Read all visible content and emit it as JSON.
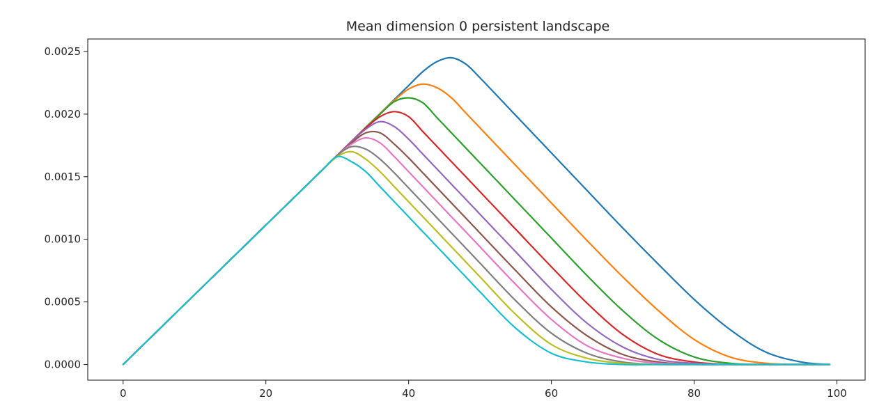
{
  "chart_data": {
    "type": "line",
    "title": "Mean dimension 0 persistent landscape",
    "xlabel": "",
    "ylabel": "",
    "xlim": [
      -4.95,
      103.95
    ],
    "ylim": [
      -0.000125,
      0.0026
    ],
    "xticks": [
      0,
      20,
      40,
      60,
      80,
      100
    ],
    "yticks": [
      0.0,
      0.0005,
      0.001,
      0.0015,
      0.002,
      0.0025
    ],
    "xtick_labels": [
      "0",
      "20",
      "40",
      "60",
      "80",
      "100"
    ],
    "ytick_labels": [
      "0.0000",
      "0.0005",
      "0.0010",
      "0.0015",
      "0.0020",
      "0.0025"
    ],
    "grid": false,
    "legend": "none",
    "x": [
      0,
      10,
      20,
      25,
      28,
      30,
      32,
      34,
      36,
      38,
      40,
      42,
      44,
      46,
      48,
      50,
      55,
      60,
      65,
      70,
      75,
      80,
      85,
      90,
      95,
      99
    ],
    "series": [
      {
        "color": "#1f77b4",
        "values": [
          0.0,
          0.000557,
          0.001114,
          0.001392,
          0.001559,
          0.001671,
          0.001782,
          0.001894,
          0.002005,
          0.002117,
          0.002228,
          0.00234,
          0.00242,
          0.00245,
          0.0024,
          0.00229,
          0.00199,
          0.00169,
          0.00139,
          0.00109,
          0.0008,
          0.00052,
          0.00028,
          0.0001,
          2e-05,
          0.0
        ]
      },
      {
        "color": "#ff7f0e",
        "values": [
          0.0,
          0.000557,
          0.001114,
          0.001392,
          0.001559,
          0.001671,
          0.001782,
          0.001894,
          0.002005,
          0.00211,
          0.0022,
          0.00224,
          0.00221,
          0.00213,
          0.00201,
          0.00189,
          0.00159,
          0.00129,
          0.00099,
          0.0007,
          0.00043,
          0.0002,
          6e-05,
          1e-05,
          0.0,
          0.0
        ]
      },
      {
        "color": "#2ca02c",
        "values": [
          0.0,
          0.000557,
          0.001114,
          0.001392,
          0.001559,
          0.001671,
          0.001782,
          0.001894,
          0.002,
          0.0021,
          0.00213,
          0.00209,
          0.00197,
          0.00185,
          0.00173,
          0.00161,
          0.00131,
          0.00101,
          0.00071,
          0.00043,
          0.0002,
          6e-05,
          1e-05,
          0.0,
          0.0,
          0.0
        ]
      },
      {
        "color": "#d62728",
        "values": [
          0.0,
          0.000557,
          0.001114,
          0.001392,
          0.001559,
          0.001671,
          0.001782,
          0.00189,
          0.00198,
          0.00202,
          0.00198,
          0.00186,
          0.00174,
          0.00162,
          0.0015,
          0.00138,
          0.00108,
          0.00078,
          0.00049,
          0.00024,
          8e-05,
          2e-05,
          0.0,
          0.0,
          0.0,
          0.0
        ]
      },
      {
        "color": "#9467bd",
        "values": [
          0.0,
          0.000557,
          0.001114,
          0.001392,
          0.001559,
          0.001671,
          0.00178,
          0.00188,
          0.00194,
          0.0019,
          0.0018,
          0.00168,
          0.00156,
          0.00144,
          0.00132,
          0.0012,
          0.0009,
          0.0006,
          0.00033,
          0.00014,
          4e-05,
          1e-05,
          0.0,
          0.0,
          0.0,
          0.0
        ]
      },
      {
        "color": "#8c564b",
        "values": [
          0.0,
          0.000557,
          0.001114,
          0.001392,
          0.001559,
          0.001671,
          0.00177,
          0.00185,
          0.00185,
          0.00176,
          0.00165,
          0.00153,
          0.00141,
          0.00129,
          0.00117,
          0.00105,
          0.00075,
          0.00046,
          0.00023,
          8e-05,
          2e-05,
          0.0,
          0.0,
          0.0,
          0.0,
          0.0
        ]
      },
      {
        "color": "#e377c2",
        "values": [
          0.0,
          0.000557,
          0.001114,
          0.001392,
          0.001559,
          0.00167,
          0.00176,
          0.00181,
          0.00177,
          0.00166,
          0.00154,
          0.00142,
          0.0013,
          0.00118,
          0.00106,
          0.00094,
          0.00064,
          0.00036,
          0.00015,
          5e-05,
          1e-05,
          0.0,
          0.0,
          0.0,
          0.0,
          0.0
        ]
      },
      {
        "color": "#7f7f7f",
        "values": [
          0.0,
          0.000557,
          0.001114,
          0.001392,
          0.001559,
          0.00167,
          0.00174,
          0.00172,
          0.00164,
          0.00153,
          0.00141,
          0.00129,
          0.00117,
          0.00105,
          0.00093,
          0.00081,
          0.00051,
          0.00025,
          9e-05,
          2e-05,
          0.0,
          0.0,
          0.0,
          0.0,
          0.0,
          0.0
        ]
      },
      {
        "color": "#bcbd22",
        "values": [
          0.0,
          0.000557,
          0.001114,
          0.001392,
          0.001559,
          0.00166,
          0.0017,
          0.00164,
          0.00154,
          0.00142,
          0.0013,
          0.00118,
          0.00106,
          0.00094,
          0.00082,
          0.0007,
          0.0004,
          0.00016,
          5e-05,
          1e-05,
          0.0,
          0.0,
          0.0,
          0.0,
          0.0,
          0.0
        ]
      },
      {
        "color": "#17becf",
        "values": [
          0.0,
          0.000557,
          0.001114,
          0.001392,
          0.001559,
          0.00166,
          0.00162,
          0.00154,
          0.00142,
          0.0013,
          0.00118,
          0.00106,
          0.00094,
          0.00082,
          0.0007,
          0.00058,
          0.00029,
          9e-05,
          2e-05,
          0.0,
          0.0,
          0.0,
          0.0,
          0.0,
          0.0,
          0.0
        ]
      }
    ]
  }
}
